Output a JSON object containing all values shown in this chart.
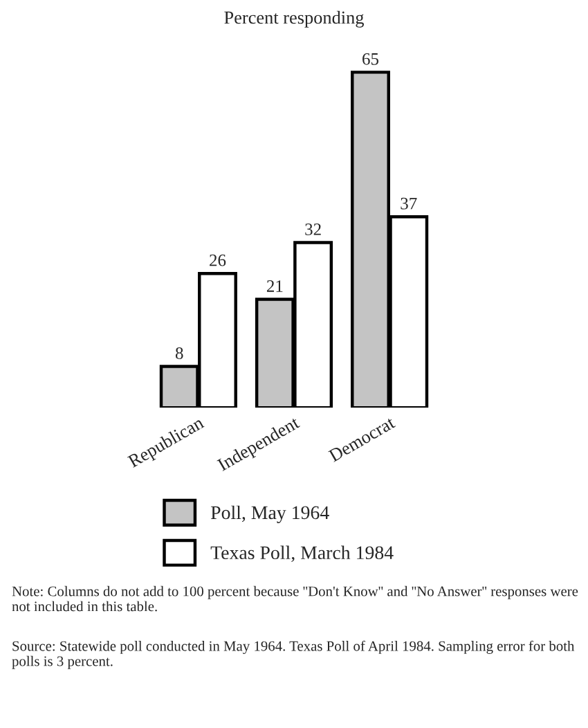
{
  "chart_data": {
    "type": "bar",
    "title": "Percent responding",
    "categories": [
      "Republican",
      "Independent",
      "Democrat"
    ],
    "series": [
      {
        "name": "Poll, May 1964",
        "color": "#c4c4c4",
        "values": [
          8,
          21,
          65
        ]
      },
      {
        "name": "Texas Poll, March 1984",
        "color": "#ffffff",
        "values": [
          26,
          32,
          37
        ]
      }
    ],
    "data_labels": true,
    "legend": "bottom",
    "grid": false,
    "annotations": [
      "Note: Columns do not add to 100 percent because ''Don't Know'' and ''No Answer'' responses were not included in this table.",
      "Source: Statewide poll conducted in May 1964. Texas Poll of April 1984. Sampling error for both polls is 3 percent."
    ]
  }
}
